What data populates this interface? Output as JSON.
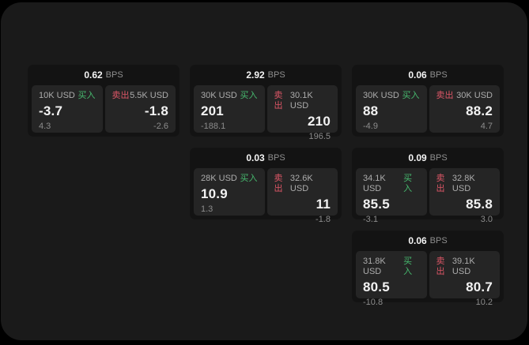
{
  "labels": {
    "bps": "BPS",
    "buy": "买入",
    "sell": "卖出"
  },
  "colors": {
    "page_background": "#1a1a1a",
    "card_background": "#131313",
    "panel_background": "#252525",
    "buy_accent": "#46b96e",
    "sell_accent": "#dc5666",
    "value_text": "#f2f2f2",
    "muted_text": "#8c8c8c"
  },
  "cards": [
    {
      "bps": "0.62",
      "buy": {
        "size": "10K USD",
        "value": "-3.7",
        "delta": "4.3"
      },
      "sell": {
        "size": "5.5K USD",
        "value": "-1.8",
        "delta": "-2.6"
      }
    },
    {
      "bps": "2.92",
      "buy": {
        "size": "30K USD",
        "value": "201",
        "delta": "-188.1"
      },
      "sell": {
        "size": "30.1K USD",
        "value": "210",
        "delta": "196.5"
      }
    },
    {
      "bps": "0.06",
      "buy": {
        "size": "30K USD",
        "value": "88",
        "delta": "-4.9"
      },
      "sell": {
        "size": "30K USD",
        "value": "88.2",
        "delta": "4.7"
      }
    },
    {
      "bps": "0.03",
      "buy": {
        "size": "28K USD",
        "value": "10.9",
        "delta": "1.3"
      },
      "sell": {
        "size": "32.6K USD",
        "value": "11",
        "delta": "-1.8"
      }
    },
    {
      "bps": "0.09",
      "buy": {
        "size": "34.1K USD",
        "value": "85.5",
        "delta": "-3.1"
      },
      "sell": {
        "size": "32.8K USD",
        "value": "85.8",
        "delta": "3.0"
      }
    },
    {
      "bps": "0.06",
      "buy": {
        "size": "31.8K USD",
        "value": "80.5",
        "delta": "-10.8"
      },
      "sell": {
        "size": "39.1K USD",
        "value": "80.7",
        "delta": "10.2"
      }
    }
  ]
}
